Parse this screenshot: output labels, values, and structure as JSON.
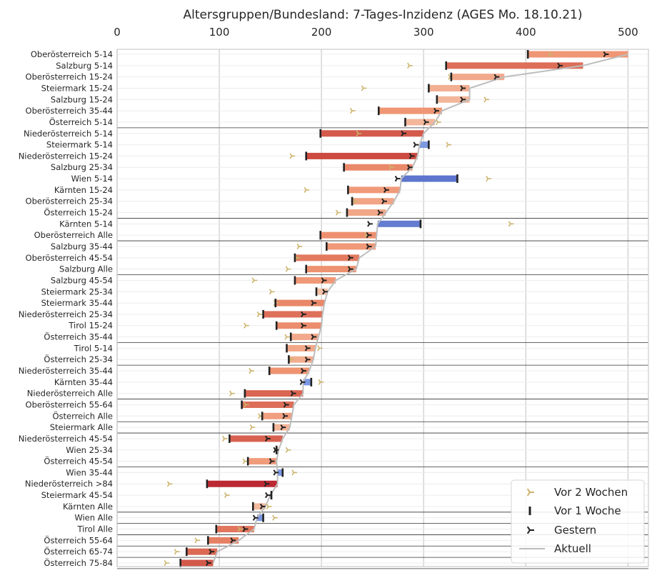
{
  "chart_data": {
    "type": "range-bar",
    "title": "Altersgruppen/Bundesland: 7-Tages-Inzidenz (AGES Mo. 18.10.21)",
    "xlim": [
      0,
      520
    ],
    "xticks": [
      "0",
      "100",
      "200",
      "300",
      "400",
      "500"
    ],
    "xticks_position": "top",
    "grid": true,
    "legend_position": "lower-right",
    "legend": [
      {
        "name": "Vor 2 Wochen",
        "marker": "tri-right",
        "color": "#ccb36b"
      },
      {
        "name": "Vor 1 Woche",
        "marker": "vline",
        "color": "#222222"
      },
      {
        "name": "Gestern",
        "marker": "tri-right",
        "color": "#222222"
      },
      {
        "name": "Aktuell",
        "marker": "line",
        "color": "#bbbbbb"
      }
    ],
    "rows": [
      {
        "label": "Oberösterreich 5-14",
        "two_weeks": 424,
        "one_week": 402,
        "yesterday": 478,
        "current": 500
      },
      {
        "label": "Salzburg 5-14",
        "two_weeks": 286,
        "one_week": 322,
        "yesterday": 433,
        "current": 456
      },
      {
        "label": "Oberösterreich 15-24",
        "two_weeks": 326,
        "one_week": 327,
        "yesterday": 371,
        "current": 379
      },
      {
        "label": "Steiermark 15-24",
        "two_weeks": 241,
        "one_week": 305,
        "yesterday": 338,
        "current": 345
      },
      {
        "label": "Salzburg 15-24",
        "two_weeks": 361,
        "one_week": 313,
        "yesterday": 338,
        "current": 345
      },
      {
        "label": "Oberösterreich 35-44",
        "two_weeks": 230,
        "one_week": 256,
        "yesterday": 312,
        "current": 318
      },
      {
        "label": "Österreich 5-14",
        "two_weeks": 314,
        "one_week": 282,
        "yesterday": 302,
        "current": 311
      },
      {
        "label": "Niederösterreich 5-14",
        "two_weeks": 236,
        "one_week": 199,
        "yesterday": 280,
        "current": 300
      },
      {
        "label": "Steiermark 5-14",
        "two_weeks": 324,
        "one_week": 305,
        "yesterday": 292,
        "current": 296
      },
      {
        "label": "Niederösterreich 15-24",
        "two_weeks": 171,
        "one_week": 185,
        "yesterday": 288,
        "current": 294
      },
      {
        "label": "Salzburg 25-34",
        "two_weeks": 268,
        "one_week": 222,
        "yesterday": 286,
        "current": 289
      },
      {
        "label": "Wien 5-14",
        "two_weeks": 363,
        "one_week": 333,
        "yesterday": 274,
        "current": 278
      },
      {
        "label": "Kärnten 15-24",
        "two_weeks": 185,
        "one_week": 226,
        "yesterday": 263,
        "current": 277
      },
      {
        "label": "Oberösterreich 25-34",
        "two_weeks": 233,
        "one_week": 230,
        "yesterday": 261,
        "current": 271
      },
      {
        "label": "Österreich 15-24",
        "two_weeks": 216,
        "one_week": 225,
        "yesterday": 257,
        "current": 263
      },
      {
        "label": "Kärnten 5-14",
        "two_weeks": 385,
        "one_week": 297,
        "yesterday": 247,
        "current": 255
      },
      {
        "label": "Oberösterreich Alle",
        "two_weeks": 244,
        "one_week": 199,
        "yesterday": 246,
        "current": 254
      },
      {
        "label": "Salzburg 35-44",
        "two_weeks": 178,
        "one_week": 205,
        "yesterday": 246,
        "current": 253
      },
      {
        "label": "Oberösterreich 45-54",
        "two_weeks": 176,
        "one_week": 174,
        "yesterday": 228,
        "current": 237
      },
      {
        "label": "Salzburg Alle",
        "two_weeks": 167,
        "one_week": 185,
        "yesterday": 228,
        "current": 234
      },
      {
        "label": "Salzburg 45-54",
        "two_weeks": 134,
        "one_week": 174,
        "yesterday": 202,
        "current": 214
      },
      {
        "label": "Steiermark 25-34",
        "two_weeks": 151,
        "one_week": 195,
        "yesterday": 203,
        "current": 206
      },
      {
        "label": "Steiermark 35-44",
        "two_weeks": 155,
        "one_week": 155,
        "yesterday": 192,
        "current": 203
      },
      {
        "label": "Niederösterreich 25-34",
        "two_weeks": 139,
        "one_week": 143,
        "yesterday": 182,
        "current": 201
      },
      {
        "label": "Tirol 15-24",
        "two_weeks": 126,
        "one_week": 156,
        "yesterday": 182,
        "current": 200
      },
      {
        "label": "Österreich 35-44",
        "two_weeks": 166,
        "one_week": 170,
        "yesterday": 192,
        "current": 197
      },
      {
        "label": "Tirol 5-14",
        "two_weeks": 198,
        "one_week": 166,
        "yesterday": 186,
        "current": 194
      },
      {
        "label": "Österreich 25-34",
        "two_weeks": 170,
        "one_week": 168,
        "yesterday": 186,
        "current": 192
      },
      {
        "label": "Niederösterreich 35-44",
        "two_weeks": 131,
        "one_week": 149,
        "yesterday": 182,
        "current": 188
      },
      {
        "label": "Kärnten 35-44",
        "two_weeks": 199,
        "one_week": 190,
        "yesterday": 181,
        "current": 182
      },
      {
        "label": "Niederösterreich Alle",
        "two_weeks": 112,
        "one_week": 125,
        "yesterday": 172,
        "current": 182
      },
      {
        "label": "Oberösterreich 55-64",
        "two_weeks": 126,
        "one_week": 122,
        "yesterday": 165,
        "current": 173
      },
      {
        "label": "Österreich Alle",
        "two_weeks": 140,
        "one_week": 142,
        "yesterday": 164,
        "current": 171
      },
      {
        "label": "Steiermark Alle",
        "two_weeks": 132,
        "one_week": 153,
        "yesterday": 162,
        "current": 169
      },
      {
        "label": "Niederösterreich 45-54",
        "two_weeks": 105,
        "one_week": 110,
        "yesterday": 147,
        "current": 162
      },
      {
        "label": "Wien 25-34",
        "two_weeks": 167,
        "one_week": 156,
        "yesterday": 155,
        "current": 158
      },
      {
        "label": "Österreich 45-54",
        "two_weeks": 125,
        "one_week": 128,
        "yesterday": 151,
        "current": 156
      },
      {
        "label": "Wien 35-44",
        "two_weeks": 173,
        "one_week": 162,
        "yesterday": 155,
        "current": 157
      },
      {
        "label": "Niederösterreich >84",
        "two_weeks": 51,
        "one_week": 88,
        "yesterday": 146,
        "current": 157
      },
      {
        "label": "Steiermark 45-54",
        "two_weeks": 107,
        "one_week": 151,
        "yesterday": 147,
        "current": 150
      },
      {
        "label": "Kärnten Alle",
        "two_weeks": 148,
        "one_week": 133,
        "yesterday": 142,
        "current": 145
      },
      {
        "label": "Wien Alle",
        "two_weeks": 154,
        "one_week": 143,
        "yesterday": 135,
        "current": 137
      },
      {
        "label": "Tirol Alle",
        "two_weeks": 120,
        "one_week": 97,
        "yesterday": 125,
        "current": 134
      },
      {
        "label": "Österreich 55-64",
        "two_weeks": 78,
        "one_week": 89,
        "yesterday": 113,
        "current": 119
      },
      {
        "label": "Österreich 65-74",
        "two_weeks": 58,
        "one_week": 68,
        "yesterday": 92,
        "current": 98
      },
      {
        "label": "Österreich 75-84",
        "two_weeks": 48,
        "one_week": 62,
        "yesterday": 89,
        "current": 94
      }
    ]
  }
}
